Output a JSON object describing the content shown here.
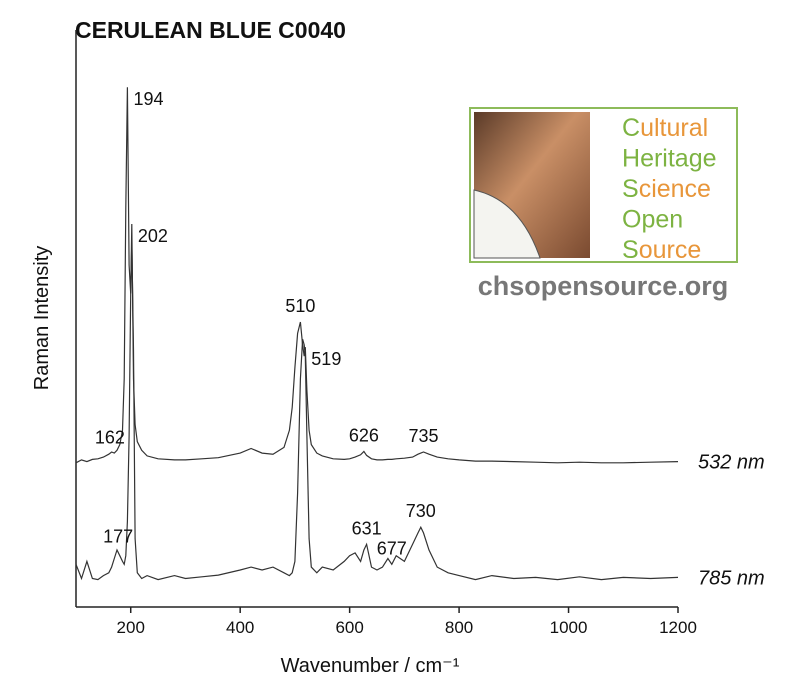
{
  "chart_data": {
    "type": "line",
    "title": "CERULEAN BLUE C0040",
    "xlabel": "Wavenumber / cm⁻¹",
    "ylabel": "Raman Intensity",
    "xlim": [
      100,
      1200
    ],
    "xticks": [
      200,
      400,
      600,
      800,
      1000,
      1200
    ],
    "ylim": [
      0,
      100
    ],
    "x": [
      100,
      110,
      120,
      130,
      140,
      150,
      160,
      165,
      170,
      175,
      180,
      185,
      188,
      191,
      194,
      197,
      200,
      202,
      205,
      208,
      212,
      220,
      230,
      250,
      280,
      300,
      330,
      360,
      400,
      420,
      440,
      460,
      480,
      490,
      495,
      500,
      505,
      510,
      514,
      517,
      519,
      522,
      526,
      530,
      540,
      550,
      570,
      590,
      600,
      610,
      620,
      626,
      631,
      640,
      650,
      660,
      670,
      677,
      685,
      700,
      715,
      725,
      730,
      735,
      745,
      760,
      780,
      800,
      830,
      860,
      900,
      940,
      980,
      1020,
      1060,
      1100,
      1150,
      1200
    ],
    "series": [
      {
        "name": "532 nm",
        "color": "#333333",
        "peaks": [
          162,
          194,
          202,
          510,
          519,
          626,
          735
        ],
        "values": [
          25.3,
          25.8,
          25.5,
          25.9,
          26.0,
          26.3,
          26.8,
          27.2,
          27.0,
          27.5,
          28.5,
          31,
          40,
          70,
          91.2,
          60,
          55,
          67.2,
          40,
          32,
          29,
          27.5,
          26.5,
          26,
          25.8,
          25.8,
          26,
          26.2,
          27,
          27.8,
          27,
          26.8,
          28,
          31,
          35,
          42,
          48,
          50,
          46,
          44,
          45.6,
          38,
          31,
          28.5,
          27,
          26.5,
          26,
          25.9,
          26,
          26.3,
          26.7,
          27.3,
          26.6,
          26,
          25.8,
          25.8,
          25.9,
          25.9,
          26,
          26.1,
          26.3,
          26.8,
          27,
          27.2,
          26.8,
          26.3,
          26,
          25.8,
          25.6,
          25.6,
          25.5,
          25.4,
          25.3,
          25.4,
          25.3,
          25.3,
          25.4,
          25.5
        ]
      },
      {
        "name": "785 nm",
        "color": "#333333",
        "peaks": [
          177,
          631,
          677,
          730
        ],
        "values": [
          7.5,
          5,
          8,
          5,
          4.8,
          5.5,
          6,
          7,
          8.5,
          10,
          9,
          8,
          7.5,
          9,
          15,
          30,
          55,
          64,
          45,
          12,
          6,
          5,
          5.5,
          4.8,
          5.5,
          5,
          5.3,
          5.6,
          6.5,
          7,
          6.5,
          7,
          6,
          5.5,
          6,
          8,
          20,
          40,
          47,
          46,
          44,
          30,
          12,
          7,
          6,
          7,
          6.5,
          8,
          9,
          9.5,
          8,
          10,
          11,
          7,
          6.5,
          7,
          8.5,
          7.5,
          9,
          8,
          11,
          13,
          14,
          13,
          10,
          7,
          6,
          5.5,
          4.8,
          5.5,
          5,
          5.2,
          4.8,
          5.3,
          4.8,
          5.2,
          5,
          5.2
        ]
      }
    ]
  },
  "logo": {
    "lines": [
      "Cultural",
      "Heritage",
      "Science",
      "Open",
      "Source"
    ],
    "url": "chsopensource.org"
  }
}
